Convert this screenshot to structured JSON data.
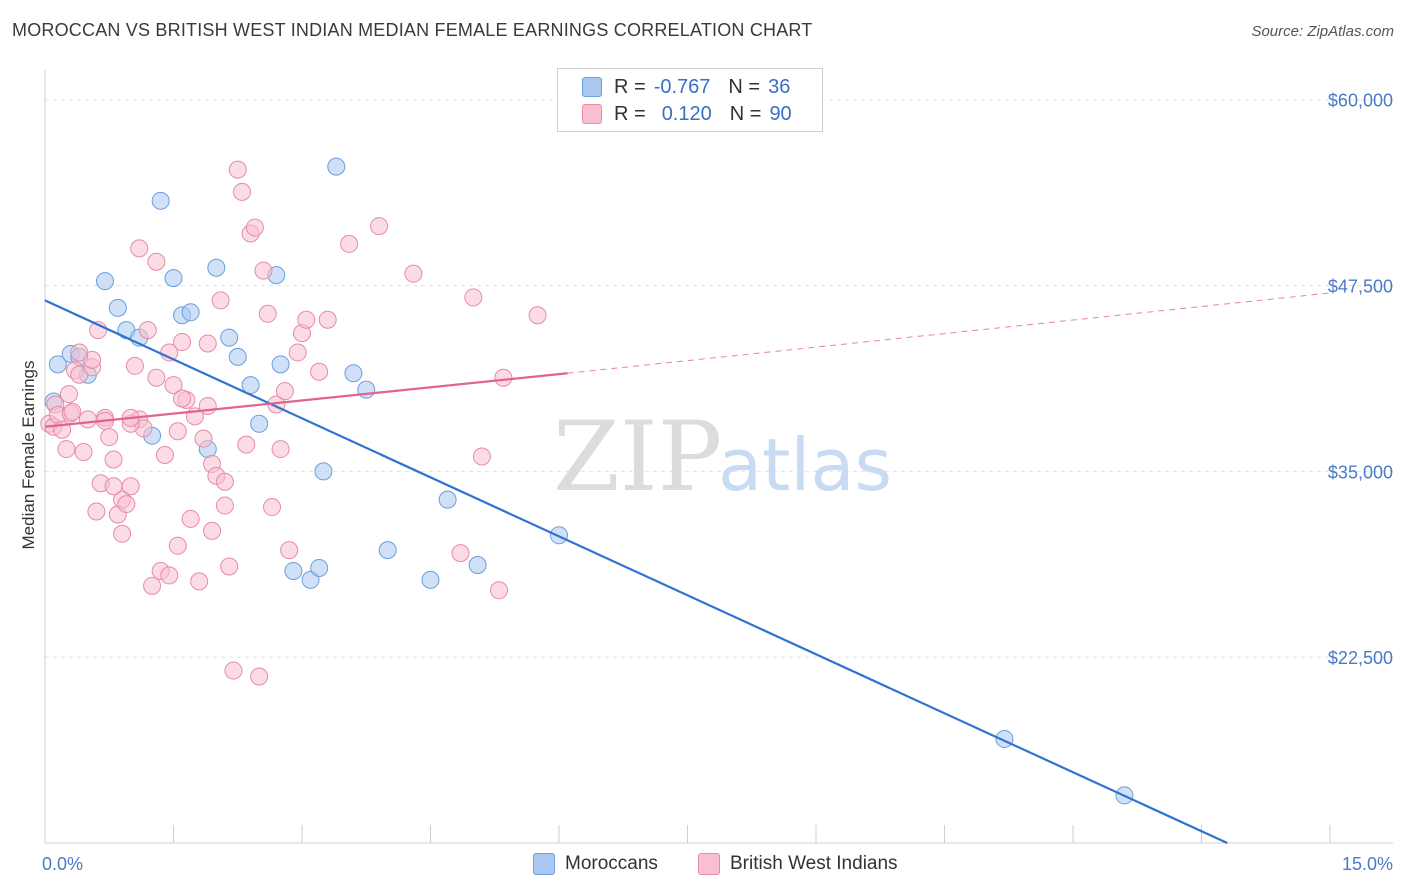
{
  "title": "MOROCCAN VS BRITISH WEST INDIAN MEDIAN FEMALE EARNINGS CORRELATION CHART",
  "source": "Source: ZipAtlas.com",
  "watermark": {
    "zip": "ZIP",
    "atlas": "atlas"
  },
  "legend": {
    "moroccans": {
      "r_label": "R =",
      "r": "-0.767",
      "n_label": "N =",
      "n": "36",
      "color": "#a9c8f0",
      "border": "#6a9fdc"
    },
    "bwi": {
      "r_label": "R =",
      "r": "0.120",
      "n_label": "N =",
      "n": "90",
      "color": "#f7bfd0",
      "border": "#e88aa8"
    }
  },
  "bottom_legend": {
    "moroccans": "Moroccans",
    "bwi": "British West Indians"
  },
  "chart_data": {
    "type": "scatter",
    "title": "MOROCCAN VS BRITISH WEST INDIAN MEDIAN FEMALE EARNINGS CORRELATION CHART",
    "xlabel": "",
    "ylabel": "Median Female Earnings",
    "xlim": [
      0,
      15
    ],
    "ylim": [
      10000,
      62000
    ],
    "x_tick_labels": [
      "0.0%",
      "15.0%"
    ],
    "y_ticks": [
      22500,
      35000,
      47500,
      60000
    ],
    "y_tick_labels": [
      "$22,500",
      "$35,000",
      "$47,500",
      "$60,000"
    ],
    "grid": true,
    "legend_position": "top-center",
    "series": [
      {
        "name": "Moroccans",
        "color": "#6a9fdc",
        "fill": "#a9c8f0",
        "trend": {
          "x": [
            0,
            13.8
          ],
          "y": [
            46500,
            10000
          ],
          "dashed_to": null
        },
        "points": [
          [
            0.15,
            42200
          ],
          [
            0.3,
            42900
          ],
          [
            0.4,
            42700
          ],
          [
            0.5,
            41500
          ],
          [
            0.7,
            47800
          ],
          [
            0.85,
            46000
          ],
          [
            0.95,
            44500
          ],
          [
            1.1,
            44000
          ],
          [
            1.25,
            37400
          ],
          [
            1.35,
            53200
          ],
          [
            1.5,
            48000
          ],
          [
            1.6,
            45500
          ],
          [
            1.7,
            45700
          ],
          [
            1.9,
            36500
          ],
          [
            2.0,
            48700
          ],
          [
            2.15,
            44000
          ],
          [
            2.25,
            42700
          ],
          [
            2.4,
            40800
          ],
          [
            2.5,
            38200
          ],
          [
            2.7,
            48200
          ],
          [
            2.75,
            42200
          ],
          [
            2.9,
            28300
          ],
          [
            3.1,
            27700
          ],
          [
            3.2,
            28500
          ],
          [
            3.25,
            35000
          ],
          [
            3.4,
            55500
          ],
          [
            3.6,
            41600
          ],
          [
            3.75,
            40500
          ],
          [
            4.0,
            29700
          ],
          [
            4.5,
            27700
          ],
          [
            4.7,
            33100
          ],
          [
            5.05,
            28700
          ],
          [
            6.0,
            30700
          ],
          [
            11.2,
            17000
          ],
          [
            12.6,
            13200
          ],
          [
            0.1,
            39700
          ]
        ]
      },
      {
        "name": "British West Indians",
        "color": "#e88aa8",
        "fill": "#f7bfd0",
        "trend": {
          "x": [
            0,
            6.1
          ],
          "y": [
            38000,
            41600
          ],
          "dashed_to": [
            15,
            47000
          ]
        },
        "points": [
          [
            0.05,
            38200
          ],
          [
            0.1,
            38000
          ],
          [
            0.12,
            39500
          ],
          [
            0.15,
            38800
          ],
          [
            0.2,
            37800
          ],
          [
            0.25,
            36500
          ],
          [
            0.28,
            40200
          ],
          [
            0.3,
            38900
          ],
          [
            0.35,
            41800
          ],
          [
            0.4,
            41500
          ],
          [
            0.45,
            36300
          ],
          [
            0.5,
            38500
          ],
          [
            0.55,
            42000
          ],
          [
            0.6,
            32300
          ],
          [
            0.65,
            34200
          ],
          [
            0.7,
            38600
          ],
          [
            0.75,
            37300
          ],
          [
            0.8,
            35800
          ],
          [
            0.85,
            32100
          ],
          [
            0.9,
            33100
          ],
          [
            0.95,
            32800
          ],
          [
            1.0,
            34000
          ],
          [
            1.05,
            42100
          ],
          [
            1.1,
            38500
          ],
          [
            1.15,
            37900
          ],
          [
            1.2,
            44500
          ],
          [
            1.25,
            27300
          ],
          [
            1.3,
            41300
          ],
          [
            1.35,
            28300
          ],
          [
            1.4,
            36100
          ],
          [
            1.45,
            43000
          ],
          [
            1.5,
            40800
          ],
          [
            1.55,
            37700
          ],
          [
            1.6,
            43700
          ],
          [
            1.65,
            39800
          ],
          [
            1.7,
            31800
          ],
          [
            1.75,
            38700
          ],
          [
            1.8,
            27600
          ],
          [
            1.85,
            37200
          ],
          [
            1.9,
            39400
          ],
          [
            1.95,
            35500
          ],
          [
            2.0,
            34700
          ],
          [
            2.05,
            46500
          ],
          [
            2.1,
            32700
          ],
          [
            2.15,
            28600
          ],
          [
            2.2,
            21600
          ],
          [
            2.25,
            55300
          ],
          [
            2.3,
            53800
          ],
          [
            2.35,
            36800
          ],
          [
            2.4,
            51000
          ],
          [
            2.45,
            51400
          ],
          [
            2.5,
            21200
          ],
          [
            2.55,
            48500
          ],
          [
            2.6,
            45600
          ],
          [
            2.65,
            32600
          ],
          [
            2.7,
            39500
          ],
          [
            2.75,
            36500
          ],
          [
            2.8,
            40400
          ],
          [
            2.85,
            29700
          ],
          [
            2.95,
            43000
          ],
          [
            3.0,
            44300
          ],
          [
            3.05,
            45200
          ],
          [
            3.2,
            41700
          ],
          [
            3.3,
            45200
          ],
          [
            3.55,
            50300
          ],
          [
            3.9,
            51500
          ],
          [
            4.3,
            48300
          ],
          [
            4.85,
            29500
          ],
          [
            5.0,
            46700
          ],
          [
            5.1,
            36000
          ],
          [
            5.3,
            27000
          ],
          [
            5.35,
            41300
          ],
          [
            5.75,
            45500
          ],
          [
            0.32,
            39000
          ],
          [
            0.55,
            42500
          ],
          [
            0.62,
            44500
          ],
          [
            0.7,
            38400
          ],
          [
            0.8,
            34000
          ],
          [
            1.0,
            38200
          ],
          [
            1.1,
            50000
          ],
          [
            1.3,
            49100
          ],
          [
            1.45,
            28000
          ],
          [
            1.55,
            30000
          ],
          [
            1.9,
            43600
          ],
          [
            1.95,
            31000
          ],
          [
            2.1,
            34300
          ],
          [
            1.6,
            39900
          ],
          [
            0.9,
            30800
          ],
          [
            1.0,
            38600
          ],
          [
            0.4,
            43000
          ]
        ]
      }
    ]
  }
}
